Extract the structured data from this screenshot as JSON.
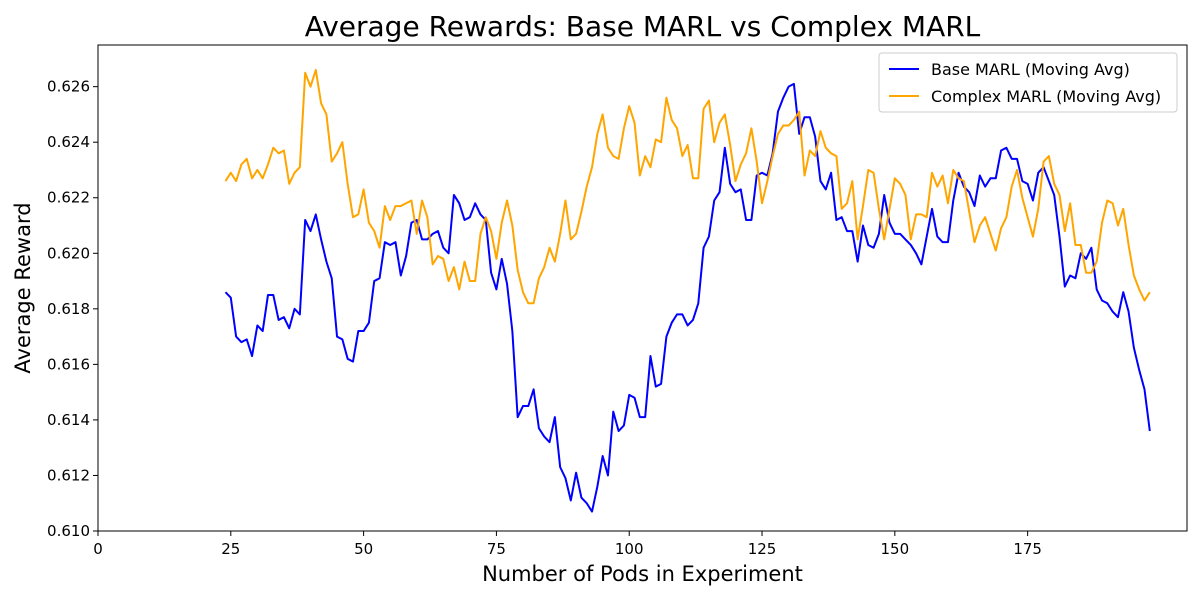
{
  "chart_data": {
    "type": "line",
    "title": "Average Rewards: Base MARL vs Complex MARL",
    "xlabel": "Number of Pods in Experiment",
    "ylabel": "Average Reward",
    "xlim": [
      0,
      205
    ],
    "ylim": [
      0.61,
      0.6275
    ],
    "xticks": [
      0,
      25,
      50,
      75,
      100,
      125,
      150,
      175
    ],
    "yticks": [
      0.61,
      0.612,
      0.614,
      0.616,
      0.618,
      0.62,
      0.622,
      0.624,
      0.626
    ],
    "ytick_labels": [
      "0.610",
      "0.612",
      "0.614",
      "0.616",
      "0.618",
      "0.620",
      "0.622",
      "0.624",
      "0.626"
    ],
    "grid": false,
    "legend_position": "top-right",
    "x_start": 24,
    "series": [
      {
        "name": "Base MARL (Moving Avg)",
        "color": "#0000ff",
        "values": [
          0.6186,
          0.6184,
          0.617,
          0.6168,
          0.6169,
          0.6163,
          0.6174,
          0.6172,
          0.6185,
          0.6185,
          0.6176,
          0.6177,
          0.6173,
          0.618,
          0.6178,
          0.6212,
          0.6208,
          0.6214,
          0.6205,
          0.6197,
          0.6191,
          0.617,
          0.6169,
          0.6162,
          0.6161,
          0.6172,
          0.6172,
          0.6175,
          0.619,
          0.6191,
          0.6204,
          0.6203,
          0.6204,
          0.6192,
          0.6199,
          0.6211,
          0.6212,
          0.6205,
          0.6205,
          0.6207,
          0.6208,
          0.6202,
          0.62,
          0.6221,
          0.6218,
          0.6212,
          0.6213,
          0.6218,
          0.6214,
          0.6212,
          0.6193,
          0.6187,
          0.6198,
          0.6189,
          0.6172,
          0.6141,
          0.6145,
          0.6145,
          0.6151,
          0.6137,
          0.6134,
          0.6132,
          0.6141,
          0.6123,
          0.6119,
          0.6111,
          0.6121,
          0.6112,
          0.611,
          0.6107,
          0.6116,
          0.6127,
          0.612,
          0.6143,
          0.6136,
          0.6138,
          0.6149,
          0.6148,
          0.6141,
          0.6141,
          0.6163,
          0.6152,
          0.6153,
          0.617,
          0.6175,
          0.6178,
          0.6178,
          0.6174,
          0.6176,
          0.6182,
          0.6202,
          0.6206,
          0.6219,
          0.6222,
          0.6238,
          0.6225,
          0.6222,
          0.6223,
          0.6212,
          0.6212,
          0.6228,
          0.6229,
          0.6228,
          0.6236,
          0.6251,
          0.6256,
          0.626,
          0.6261,
          0.6243,
          0.6249,
          0.6249,
          0.6242,
          0.6226,
          0.6223,
          0.6229,
          0.6212,
          0.6213,
          0.6208,
          0.6208,
          0.6197,
          0.621,
          0.6203,
          0.6202,
          0.6207,
          0.6221,
          0.6211,
          0.6207,
          0.6207,
          0.6205,
          0.6203,
          0.62,
          0.6196,
          0.6206,
          0.6216,
          0.6206,
          0.6204,
          0.6204,
          0.6219,
          0.6229,
          0.6224,
          0.6222,
          0.6217,
          0.6228,
          0.6224,
          0.6227,
          0.6227,
          0.6237,
          0.6238,
          0.6234,
          0.6234,
          0.6226,
          0.6225,
          0.6219,
          0.6229,
          0.6231,
          0.6226,
          0.6221,
          0.6206,
          0.6188,
          0.6192,
          0.6191,
          0.62,
          0.6198,
          0.6202,
          0.6187,
          0.6183,
          0.6182,
          0.6179,
          0.6177,
          0.6186,
          0.6179,
          0.6166,
          0.6158,
          0.6151,
          0.6136
        ]
      },
      {
        "name": "Complex MARL (Moving Avg)",
        "color": "#ffa500",
        "values": [
          0.6226,
          0.6229,
          0.6226,
          0.6232,
          0.6234,
          0.6227,
          0.623,
          0.6227,
          0.6232,
          0.6238,
          0.6236,
          0.6237,
          0.6225,
          0.6229,
          0.6231,
          0.6265,
          0.626,
          0.6266,
          0.6254,
          0.625,
          0.6233,
          0.6236,
          0.624,
          0.6225,
          0.6213,
          0.6214,
          0.6223,
          0.6211,
          0.6208,
          0.6202,
          0.6217,
          0.6212,
          0.6217,
          0.6217,
          0.6218,
          0.6219,
          0.6207,
          0.6219,
          0.6213,
          0.6196,
          0.6199,
          0.6198,
          0.619,
          0.6195,
          0.6187,
          0.6197,
          0.619,
          0.619,
          0.6207,
          0.6213,
          0.6208,
          0.6198,
          0.6211,
          0.6219,
          0.621,
          0.6194,
          0.6186,
          0.6182,
          0.6182,
          0.6191,
          0.6195,
          0.6202,
          0.6197,
          0.6207,
          0.6219,
          0.6205,
          0.6207,
          0.6215,
          0.6224,
          0.6231,
          0.6243,
          0.625,
          0.6238,
          0.6235,
          0.6234,
          0.6245,
          0.6253,
          0.6247,
          0.6228,
          0.6235,
          0.6231,
          0.6241,
          0.624,
          0.6256,
          0.6248,
          0.6245,
          0.6235,
          0.6239,
          0.6227,
          0.6227,
          0.6252,
          0.6255,
          0.624,
          0.6247,
          0.625,
          0.6239,
          0.6226,
          0.6232,
          0.6236,
          0.6245,
          0.6233,
          0.6218,
          0.6226,
          0.6235,
          0.6243,
          0.6246,
          0.6246,
          0.6248,
          0.6251,
          0.6228,
          0.6237,
          0.6235,
          0.6244,
          0.6238,
          0.6236,
          0.6235,
          0.6216,
          0.6218,
          0.6226,
          0.6205,
          0.6217,
          0.623,
          0.6229,
          0.6216,
          0.6205,
          0.6216,
          0.6227,
          0.6225,
          0.6221,
          0.6205,
          0.6214,
          0.6214,
          0.6213,
          0.6229,
          0.6224,
          0.6228,
          0.6218,
          0.623,
          0.6227,
          0.6226,
          0.6215,
          0.6204,
          0.621,
          0.6213,
          0.6207,
          0.6201,
          0.6209,
          0.6213,
          0.6224,
          0.623,
          0.622,
          0.6213,
          0.6206,
          0.6216,
          0.6233,
          0.6235,
          0.6225,
          0.6221,
          0.6208,
          0.6218,
          0.6203,
          0.6203,
          0.6193,
          0.6193,
          0.6197,
          0.6211,
          0.6219,
          0.6218,
          0.621,
          0.6216,
          0.6203,
          0.6192,
          0.6187,
          0.6183,
          0.6186
        ]
      }
    ]
  }
}
